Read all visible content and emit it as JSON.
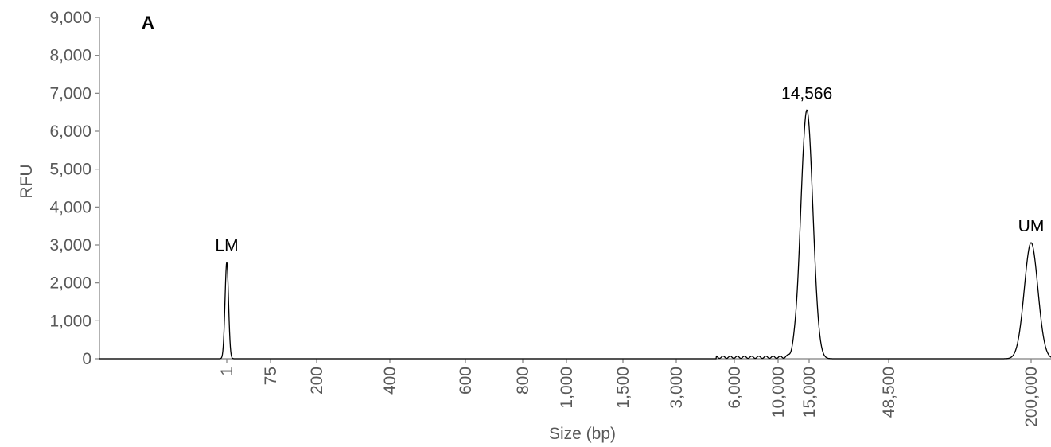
{
  "chart_data": {
    "type": "line",
    "panel_label": "A",
    "xlabel": "Size (bp)",
    "ylabel": "RFU",
    "ylim": [
      0,
      9000
    ],
    "y_ticks": [
      0,
      1000,
      2000,
      3000,
      4000,
      5000,
      6000,
      7000,
      8000,
      9000
    ],
    "y_tick_labels": [
      "0",
      "1,000",
      "2,000",
      "3,000",
      "4,000",
      "5,000",
      "6,000",
      "7,000",
      "8,000",
      "9,000"
    ],
    "x_scale": "sizing ladder (non-linear)",
    "x_tick_labels": [
      "1",
      "75",
      "200",
      "400",
      "600",
      "800",
      "1,000",
      "1,500",
      "3,000",
      "6,000",
      "10,000",
      "15,000",
      "48,500",
      "200,000"
    ],
    "grid": false,
    "legend": "none",
    "line_color": "#000000",
    "peaks": [
      {
        "label": "LM",
        "size_bp": 1,
        "rfu": 2550
      },
      {
        "label": "14,566",
        "size_bp": 14566,
        "rfu": 6560
      },
      {
        "label": "UM",
        "size_bp": 200000,
        "rfu": 3060
      }
    ]
  }
}
